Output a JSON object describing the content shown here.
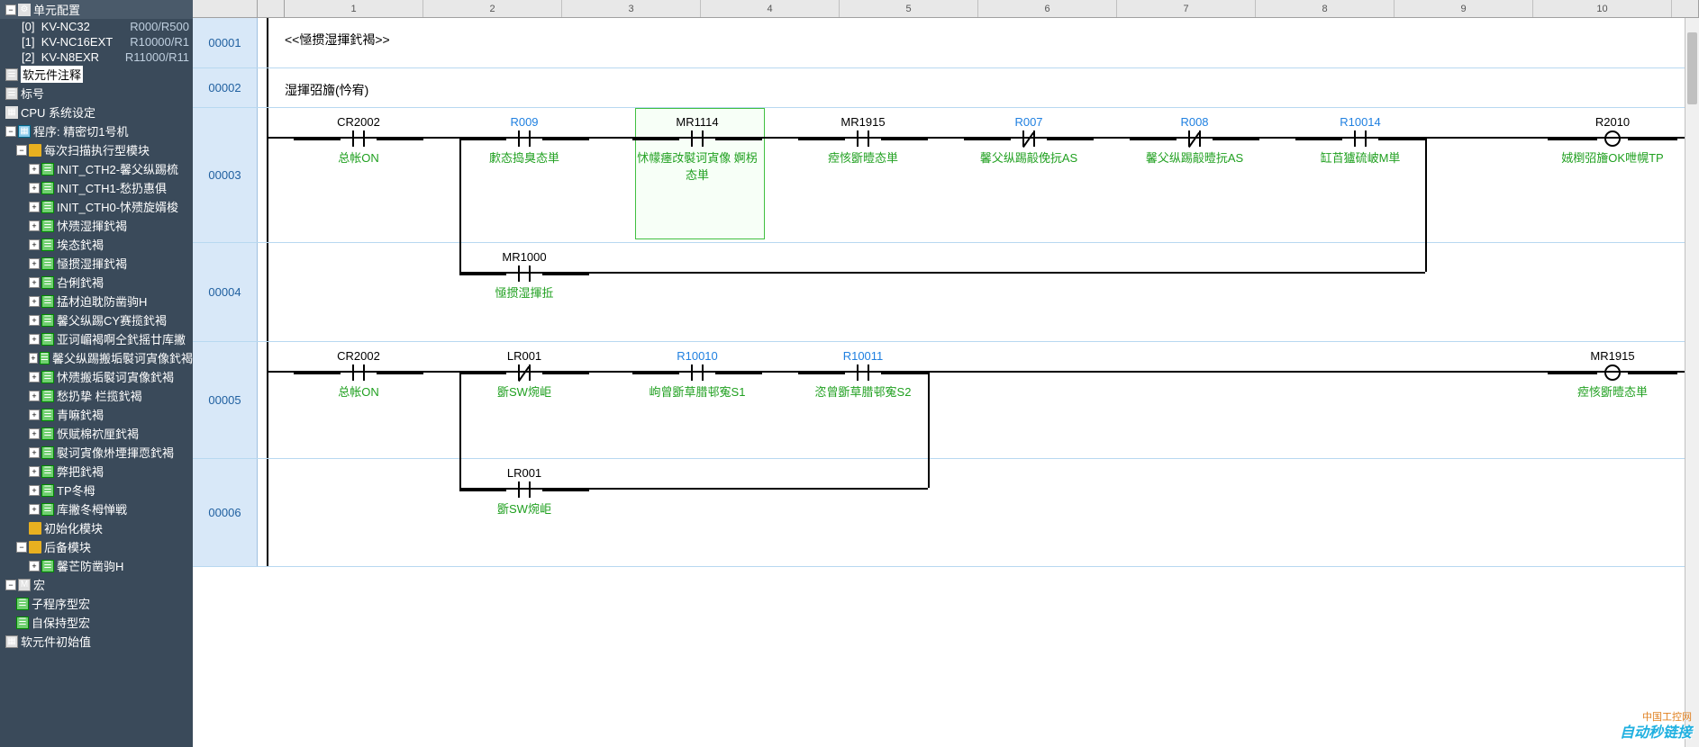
{
  "sidebar": {
    "root_label": "单元配置",
    "devices": [
      {
        "idx": "[0]",
        "name": "KV-NC32",
        "addr": "R000/R500"
      },
      {
        "idx": "[1]",
        "name": "KV-NC16EXT",
        "addr": "R10000/R1"
      },
      {
        "idx": "[2]",
        "name": "KV-N8EXR",
        "addr": "R11000/R11"
      }
    ],
    "soft_comment": "软元件注释",
    "label": "标号",
    "cpu_settings": "CPU 系统设定",
    "program_root": "程序: 精密切1号机",
    "module_scan": "每次扫描执行型模块",
    "scan_items": [
      "INIT_CTH2-馨父纵踢梳",
      "INIT_CTH1-愁扔惠俱",
      "INIT_CTH0-怵㱮旋婿梭",
      "怵㱮湿揮釴褐",
      "埃态釴褐",
      "㥛掼湿揮釴褐",
      "叴俐釴褐",
      "掹材迫耽防凿驹H",
      "馨父纵踢CY赛揽釴褐",
      "亚诃嵋褐啊仝釴摇廿库撇",
      "馨父纵踢搬垢褽诃寊像釴褐",
      "怵㱮搬垢褽诃寊像釴褐",
      "愁扔挚   栏揽釴褐",
      "青嘛釴褐",
      "恹赋棉袕厘釴褐",
      "褽诃寊像烞堙揮恧釴褐",
      "弊把釴褐",
      "TP冬栂",
      "库撇冬栂惮戦"
    ],
    "init_module": "初始化模块",
    "backup_module": "后备模块",
    "backup_item": "馨芒防凿驹H",
    "macro": "宏",
    "macro_items": [
      "子程序型宏",
      "自保持型宏"
    ],
    "soft_init": "软元件初始值"
  },
  "ruler": {
    "cols": [
      "1",
      "2",
      "3",
      "4",
      "5",
      "6",
      "7",
      "8",
      "9",
      "10"
    ]
  },
  "rungs": {
    "r1": {
      "num": "00001",
      "comment": "<<㥛掼湿揮釴褐>>"
    },
    "r2": {
      "num": "00002",
      "comment": "湿揮弨旝(忴宥)"
    },
    "r3": {
      "num": "00003",
      "e1": {
        "addr": "CR2002",
        "desc": "总帐ON"
      },
      "e2": {
        "addr": "R009",
        "desc": "㱂态捣臭态単"
      },
      "e3": {
        "addr": "MR1114",
        "desc": "怵幪瘗妀褽诃寊像 婀柺态単"
      },
      "e4": {
        "addr": "MR1915",
        "desc": "㾤㤥斵曀态単"
      },
      "e5": {
        "addr": "R007",
        "desc": "馨父纵踢毃俛抏AS"
      },
      "e6": {
        "addr": "R008",
        "desc": "馨父纵踢毃曀抏AS"
      },
      "e7": {
        "addr": "R10014",
        "desc": "缸苩獹硫岥M単"
      },
      "coil": {
        "addr": "R2010",
        "desc": "娀椡弨旝OK呭幌TP"
      }
    },
    "r4": {
      "num": "00004",
      "branch": {
        "addr": "MR1000",
        "desc": "㥛掼湿揮拞"
      }
    },
    "r5": {
      "num": "00005",
      "e1": {
        "addr": "CR2002",
        "desc": "总帐ON"
      },
      "e2": {
        "addr": "LR001",
        "desc": "斵SW焥岠"
      },
      "e3": {
        "addr": "R10010",
        "desc": "岣曾斵草腊邨寃S1"
      },
      "e4": {
        "addr": "R10011",
        "desc": "恣曾斵草腊邨寃S2"
      },
      "coil": {
        "addr": "MR1915",
        "desc": "㾤㤥斵曀态単"
      }
    },
    "r6": {
      "num": "00006",
      "branch": {
        "addr": "LR001",
        "desc": "斵SW焥岠"
      }
    }
  },
  "watermark": "自动秒链接",
  "watermark2": "中国工控网"
}
